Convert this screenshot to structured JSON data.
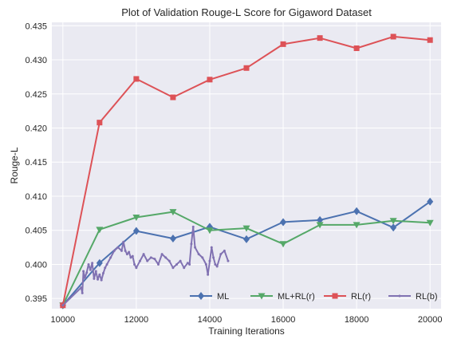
{
  "chart_data": {
    "type": "line",
    "title": "Plot of Validation Rouge-L Score for Gigaword Dataset",
    "xlabel": "Training Iterations",
    "ylabel": "Rouge-L",
    "xlim": [
      9700,
      20300
    ],
    "ylim": [
      0.3935,
      0.4355
    ],
    "x_ticks": [
      10000,
      12000,
      14000,
      16000,
      18000,
      20000
    ],
    "y_ticks": [
      0.395,
      0.4,
      0.405,
      0.41,
      0.415,
      0.42,
      0.425,
      0.43,
      0.435
    ],
    "y_tick_labels": [
      "0.395",
      "0.400",
      "0.405",
      "0.410",
      "0.415",
      "0.420",
      "0.425",
      "0.430",
      "0.435"
    ],
    "grid": true,
    "legend_position": "bottom-right",
    "background_color": "#eaeaf2",
    "series": [
      {
        "name": "ML",
        "color": "#4c72b0",
        "marker": "diamond",
        "x": [
          10000,
          11000,
          12000,
          13000,
          14000,
          15000,
          16000,
          17000,
          18000,
          19000,
          20000
        ],
        "values": [
          0.394,
          0.4002,
          0.4049,
          0.4038,
          0.4055,
          0.4037,
          0.4062,
          0.4065,
          0.4078,
          0.4054,
          0.4092
        ]
      },
      {
        "name": "ML+RL(r)",
        "color": "#55a868",
        "marker": "triangle-down",
        "x": [
          10000,
          11000,
          12000,
          13000,
          14000,
          15000,
          16000,
          17000,
          18000,
          19000,
          20000
        ],
        "values": [
          0.394,
          0.4051,
          0.4069,
          0.4077,
          0.405,
          0.4053,
          0.403,
          0.4058,
          0.4058,
          0.4064,
          0.4061
        ]
      },
      {
        "name": "RL(r)",
        "color": "#dd5257",
        "marker": "square",
        "x": [
          10000,
          11000,
          12000,
          13000,
          14000,
          15000,
          16000,
          17000,
          18000,
          19000,
          20000
        ],
        "values": [
          0.394,
          0.4208,
          0.4272,
          0.4245,
          0.4271,
          0.4288,
          0.4323,
          0.4332,
          0.4317,
          0.4334,
          0.4329
        ]
      },
      {
        "name": "RL(b)",
        "color": "#8172b2",
        "marker": "point",
        "x": [
          10000,
          10500,
          10530,
          10560,
          10600,
          10650,
          10700,
          10750,
          10800,
          10850,
          10900,
          10950,
          11000,
          11050,
          11100,
          11150,
          11200,
          11300,
          11400,
          11500,
          11600,
          11650,
          11700,
          11750,
          11800,
          11850,
          11900,
          11950,
          12000,
          12100,
          12200,
          12300,
          12400,
          12500,
          12600,
          12700,
          12800,
          12900,
          13000,
          13100,
          13200,
          13300,
          13400,
          13450,
          13500,
          13550,
          13600,
          13700,
          13800,
          13900,
          13950,
          14000,
          14050,
          14100,
          14150,
          14200,
          14300,
          14400,
          14500
        ],
        "values": [
          0.394,
          0.3966,
          0.3958,
          0.399,
          0.398,
          0.3988,
          0.4,
          0.3992,
          0.4002,
          0.3979,
          0.399,
          0.3978,
          0.3985,
          0.3977,
          0.3987,
          0.3995,
          0.4,
          0.401,
          0.402,
          0.4025,
          0.402,
          0.4033,
          0.402,
          0.4015,
          0.4018,
          0.401,
          0.4012,
          0.4,
          0.3995,
          0.4005,
          0.4015,
          0.4005,
          0.401,
          0.4008,
          0.4,
          0.4015,
          0.401,
          0.4005,
          0.3995,
          0.4,
          0.4005,
          0.3995,
          0.4002,
          0.4,
          0.403,
          0.4055,
          0.4025,
          0.4015,
          0.401,
          0.4,
          0.3985,
          0.4005,
          0.4025,
          0.401,
          0.4,
          0.3997,
          0.4015,
          0.402,
          0.4005
        ]
      }
    ]
  }
}
